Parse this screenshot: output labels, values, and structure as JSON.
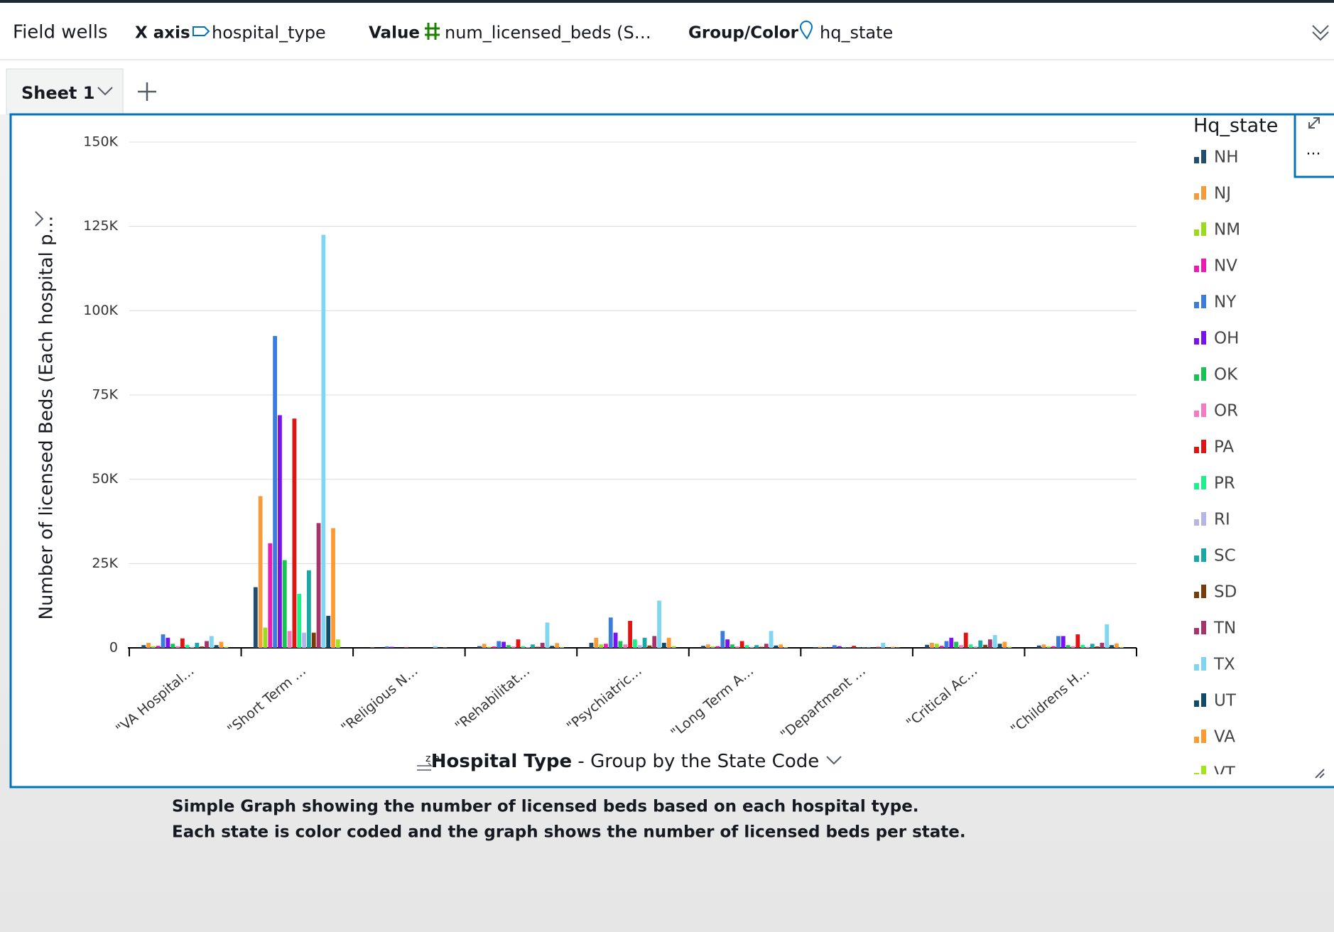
{
  "toolbar": {
    "title": "Field wells",
    "wells": [
      {
        "label": "X axis",
        "field": "hospital_type"
      },
      {
        "label": "Value",
        "field": "num_licensed_beds (S…"
      },
      {
        "label": "Group/Color",
        "field": "hq_state"
      }
    ]
  },
  "sheet": {
    "tab": "Sheet 1"
  },
  "caption": [
    "Simple Graph showing the number of licensed beds based on each hospital type.",
    "Each state is color coded and the graph shows the number of licensed beds per state."
  ],
  "chart_data": {
    "type": "bar",
    "y_label": "Number of licensed Beds (Each hospital p…",
    "x_label": "Hospital Type",
    "x_label_detail": "- Group by the State Code",
    "legend_title": "Hq_state",
    "categories": [
      "\"VA Hospital…",
      "\"Short Term …",
      "\"Religious N…",
      "\"Rehabilitat…",
      "\"Psychiatric…",
      "\"Long Term A…",
      "\"Department …",
      "\"Critical Ac…",
      "\"Childrens H…"
    ],
    "ylim": [
      0,
      150000
    ],
    "yticks": [
      0,
      {
        "value": 25000,
        "label": "25K"
      },
      {
        "value": 50000,
        "label": "50K"
      },
      {
        "value": 75000,
        "label": "75K"
      },
      {
        "value": 100000,
        "label": "100K"
      },
      {
        "value": 125000,
        "label": "125K"
      },
      {
        "value": 150000,
        "label": "150K"
      }
    ],
    "grid": true,
    "series": [
      {
        "name": "NH",
        "color": "#1f4e6e",
        "values": [
          800,
          18000,
          0,
          500,
          1500,
          600,
          200,
          900,
          700
        ]
      },
      {
        "name": "NJ",
        "color": "#f59b3a",
        "values": [
          1500,
          45000,
          100,
          1200,
          3000,
          1000,
          300,
          1500,
          1000
        ]
      },
      {
        "name": "NM",
        "color": "#9bdb1e",
        "values": [
          500,
          6000,
          0,
          300,
          1000,
          400,
          100,
          1200,
          400
        ]
      },
      {
        "name": "NV",
        "color": "#ee19b4",
        "values": [
          600,
          31000,
          0,
          400,
          1200,
          500,
          100,
          600,
          500
        ]
      },
      {
        "name": "NY",
        "color": "#3b7ddd",
        "values": [
          4000,
          92500,
          400,
          2000,
          9000,
          5000,
          800,
          2000,
          3500
        ]
      },
      {
        "name": "OH",
        "color": "#7a12f0",
        "values": [
          3000,
          69000,
          300,
          1800,
          4500,
          2500,
          500,
          3000,
          3500
        ]
      },
      {
        "name": "OK",
        "color": "#16c452",
        "values": [
          1200,
          26000,
          0,
          800,
          2000,
          1000,
          200,
          1800,
          800
        ]
      },
      {
        "name": "OR",
        "color": "#f47ac2",
        "values": [
          500,
          5000,
          0,
          400,
          1000,
          400,
          100,
          800,
          500
        ]
      },
      {
        "name": "PA",
        "color": "#e11414",
        "values": [
          2800,
          68000,
          200,
          2500,
          8000,
          2000,
          600,
          4500,
          4000
        ]
      },
      {
        "name": "PR",
        "color": "#1ef08a",
        "values": [
          900,
          16000,
          0,
          500,
          2500,
          800,
          100,
          1000,
          900
        ]
      },
      {
        "name": "RI",
        "color": "#b5b5e8",
        "values": [
          300,
          4500,
          0,
          200,
          800,
          300,
          100,
          400,
          300
        ]
      },
      {
        "name": "SC",
        "color": "#1aa7a7",
        "values": [
          1500,
          23000,
          0,
          1000,
          3000,
          800,
          200,
          2200,
          1200
        ]
      },
      {
        "name": "SD",
        "color": "#7a3a0a",
        "values": [
          400,
          4500,
          0,
          300,
          700,
          300,
          100,
          900,
          400
        ]
      },
      {
        "name": "TN",
        "color": "#a8326a",
        "values": [
          2000,
          37000,
          0,
          1500,
          3500,
          1200,
          300,
          2500,
          1500
        ]
      },
      {
        "name": "TX",
        "color": "#7fd6f0",
        "values": [
          3500,
          122500,
          500,
          7500,
          14000,
          5000,
          1500,
          3800,
          7000
        ]
      },
      {
        "name": "UT",
        "color": "#124a6a",
        "values": [
          800,
          9500,
          0,
          600,
          1500,
          700,
          200,
          1200,
          800
        ]
      },
      {
        "name": "VA",
        "color": "#ff9a33",
        "values": [
          1800,
          35500,
          100,
          1400,
          3000,
          1000,
          300,
          1800,
          1300
        ]
      },
      {
        "name": "VT",
        "color": "#9ee81a",
        "values": [
          300,
          2500,
          0,
          200,
          500,
          200,
          100,
          300,
          200
        ]
      }
    ]
  }
}
